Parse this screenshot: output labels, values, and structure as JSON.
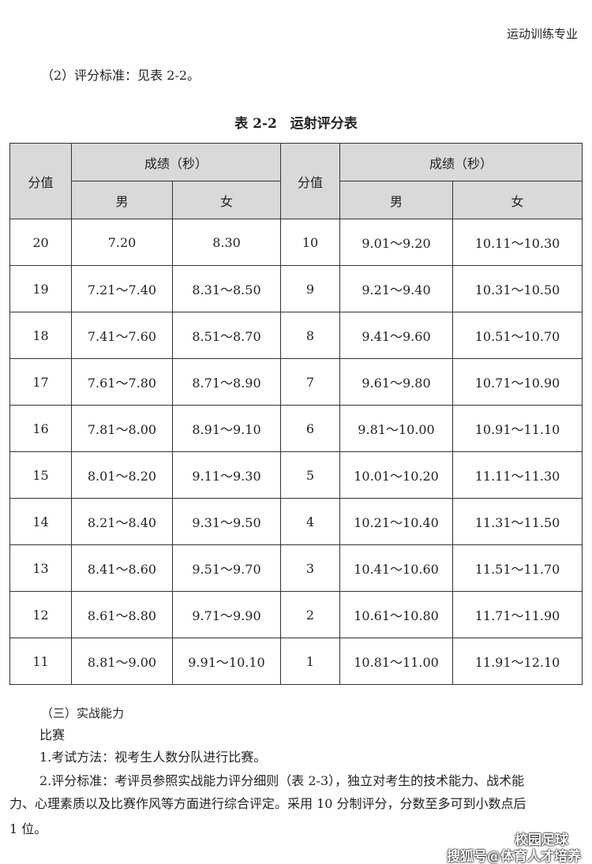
{
  "header": "运动训练专业",
  "intro": "（2）评分标准：见表 2-2。",
  "caption": "表 2-2　运射评分表",
  "table": {
    "score_header": "分值",
    "result_header": "成绩（秒）",
    "male": "男",
    "female": "女",
    "rows": [
      [
        "20",
        "7.20",
        "8.30",
        "10",
        "9.01～9.20",
        "10.11～10.30"
      ],
      [
        "19",
        "7.21～7.40",
        "8.31～8.50",
        "9",
        "9.21～9.40",
        "10.31～10.50"
      ],
      [
        "18",
        "7.41～7.60",
        "8.51～8.70",
        "8",
        "9.41～9.60",
        "10.51～10.70"
      ],
      [
        "17",
        "7.61～7.80",
        "8.71～8.90",
        "7",
        "9.61～9.80",
        "10.71～10.90"
      ],
      [
        "16",
        "7.81～8.00",
        "8.91～9.10",
        "6",
        "9.81～10.00",
        "10.91～11.10"
      ],
      [
        "15",
        "8.01～8.20",
        "9.11～9.30",
        "5",
        "10.01～10.20",
        "11.11～11.30"
      ],
      [
        "14",
        "8.21～8.40",
        "9.31～9.50",
        "4",
        "10.21～10.40",
        "11.31～11.50"
      ],
      [
        "13",
        "8.41～8.60",
        "9.51～9.70",
        "3",
        "10.41～10.60",
        "11.51～11.70"
      ],
      [
        "12",
        "8.61～8.80",
        "9.71～9.90",
        "2",
        "10.61～10.80",
        "11.71～11.90"
      ],
      [
        "11",
        "8.81～9.00",
        "9.91～10.10",
        "1",
        "10.81～11.00",
        "11.91～12.10"
      ]
    ]
  },
  "section": "（三）实战能力",
  "sub": "比赛",
  "item1": "1.考试方法：视考生人数分队进行比赛。",
  "item2_l1": "2.评分标准：考评员参照实战能力评分细则（表 2-3），独立对考生的技术能力、战术能",
  "item2_l2": "力、心理素质以及比赛作风等方面进行综合评定。采用 10 分制评分，分数至多可到小数点后",
  "item2_l3": "1 位。",
  "watermark1": "校园足球",
  "watermark2": "搜狐号@体育人才培养"
}
